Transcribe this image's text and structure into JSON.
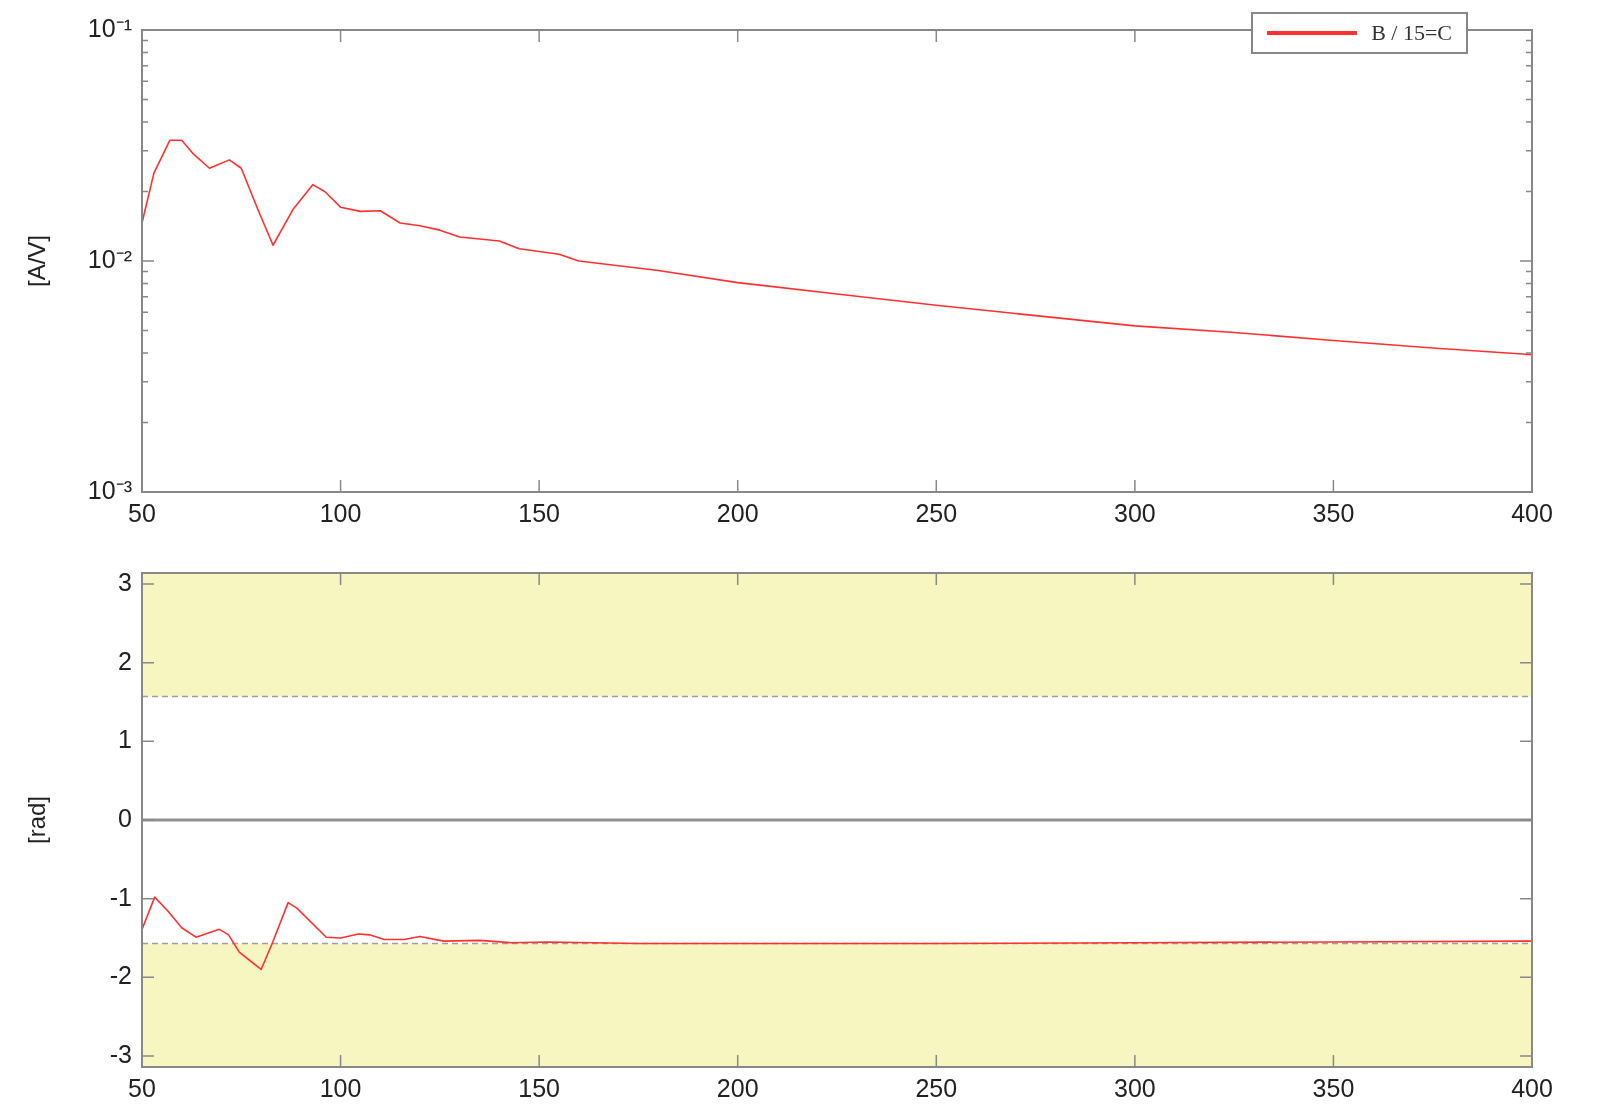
{
  "chart_data": [
    {
      "type": "line",
      "ylabel": "[A/V]",
      "log": "y",
      "legend": "top right",
      "xlim": [
        50,
        400
      ],
      "xticks": [
        50,
        100,
        150,
        200,
        250,
        300,
        350,
        400
      ],
      "ylim": [
        0.001,
        0.1
      ],
      "yticks": [
        {
          "value": 0.001,
          "label": "10⁻³"
        },
        {
          "value": 0.002,
          "label": null
        },
        {
          "value": 0.003,
          "label": null
        },
        {
          "value": 0.004,
          "label": null
        },
        {
          "value": 0.005,
          "label": null
        },
        {
          "value": 0.006,
          "label": null
        },
        {
          "value": 0.007,
          "label": null
        },
        {
          "value": 0.008,
          "label": null
        },
        {
          "value": 0.009,
          "label": null
        },
        {
          "value": 0.01,
          "label": "10⁻²"
        },
        {
          "value": 0.02,
          "label": null
        },
        {
          "value": 0.03,
          "label": null
        },
        {
          "value": 0.04,
          "label": null
        },
        {
          "value": 0.05,
          "label": null
        },
        {
          "value": 0.06,
          "label": null
        },
        {
          "value": 0.07,
          "label": null
        },
        {
          "value": 0.08,
          "label": null
        },
        {
          "value": 0.09,
          "label": null
        },
        {
          "value": 0.1,
          "label": "10⁻¹"
        }
      ],
      "series": [
        {
          "name": "B / 15=C",
          "color": "#ff3030",
          "x": [
            50,
            53,
            57,
            60,
            63,
            67,
            72,
            75,
            79,
            83,
            88,
            93,
            96,
            100,
            105,
            110,
            115,
            120,
            125,
            130,
            140,
            145,
            155,
            160,
            180,
            200,
            225,
            250,
            275,
            300,
            325,
            350,
            375,
            400
          ],
          "values": [
            0.0146,
            0.024,
            0.0333,
            0.0333,
            0.029,
            0.0252,
            0.0274,
            0.0252,
            0.017,
            0.0117,
            0.0167,
            0.0214,
            0.02,
            0.0171,
            0.0164,
            0.0165,
            0.0146,
            0.0142,
            0.0136,
            0.0127,
            0.0122,
            0.0113,
            0.0107,
            0.01,
            0.0091,
            0.00806,
            0.0072,
            0.00643,
            0.0058,
            0.00524,
            0.0049,
            0.00453,
            0.0042,
            0.00393
          ]
        }
      ]
    },
    {
      "type": "line",
      "ylabel": "[rad]",
      "xlim": [
        50,
        400
      ],
      "xticks": [
        50,
        100,
        150,
        200,
        250,
        300,
        350,
        400
      ],
      "ylim": [
        -3.14,
        3.14
      ],
      "yticks": [
        -3,
        -2,
        -1,
        0,
        1,
        2,
        3
      ],
      "bands": [
        {
          "axis": "y",
          "from": 1.57,
          "to": 3.14,
          "color": "#f7f5c0"
        },
        {
          "axis": "y",
          "from": -3.14,
          "to": -1.57,
          "color": "#f7f5c0"
        }
      ],
      "ref_lines": [
        {
          "axis": "y",
          "value": 1.57,
          "color": "#a0a0a0",
          "line_style": "dashed"
        },
        {
          "axis": "y",
          "value": -1.57,
          "color": "#a0a0a0",
          "line_style": "dashed"
        },
        {
          "axis": "y",
          "value": 0,
          "color": "#909090",
          "line_style": "solid"
        }
      ],
      "series": [
        {
          "color": "#ff3030",
          "x": [
            50,
            53.2,
            56.4,
            60,
            63.6,
            69.5,
            71.8,
            74.5,
            80,
            82.7,
            86.8,
            89,
            96.4,
            100,
            104.5,
            107.3,
            111,
            116,
            120,
            126,
            135,
            143,
            152,
            175,
            200,
            250,
            300,
            350,
            400
          ],
          "values": [
            -1.39,
            -0.98,
            -1.15,
            -1.37,
            -1.49,
            -1.39,
            -1.46,
            -1.68,
            -1.9,
            -1.58,
            -1.05,
            -1.12,
            -1.49,
            -1.5,
            -1.45,
            -1.46,
            -1.52,
            -1.52,
            -1.48,
            -1.54,
            -1.53,
            -1.56,
            -1.55,
            -1.57,
            -1.57,
            -1.57,
            -1.56,
            -1.55,
            -1.54
          ]
        }
      ]
    }
  ]
}
